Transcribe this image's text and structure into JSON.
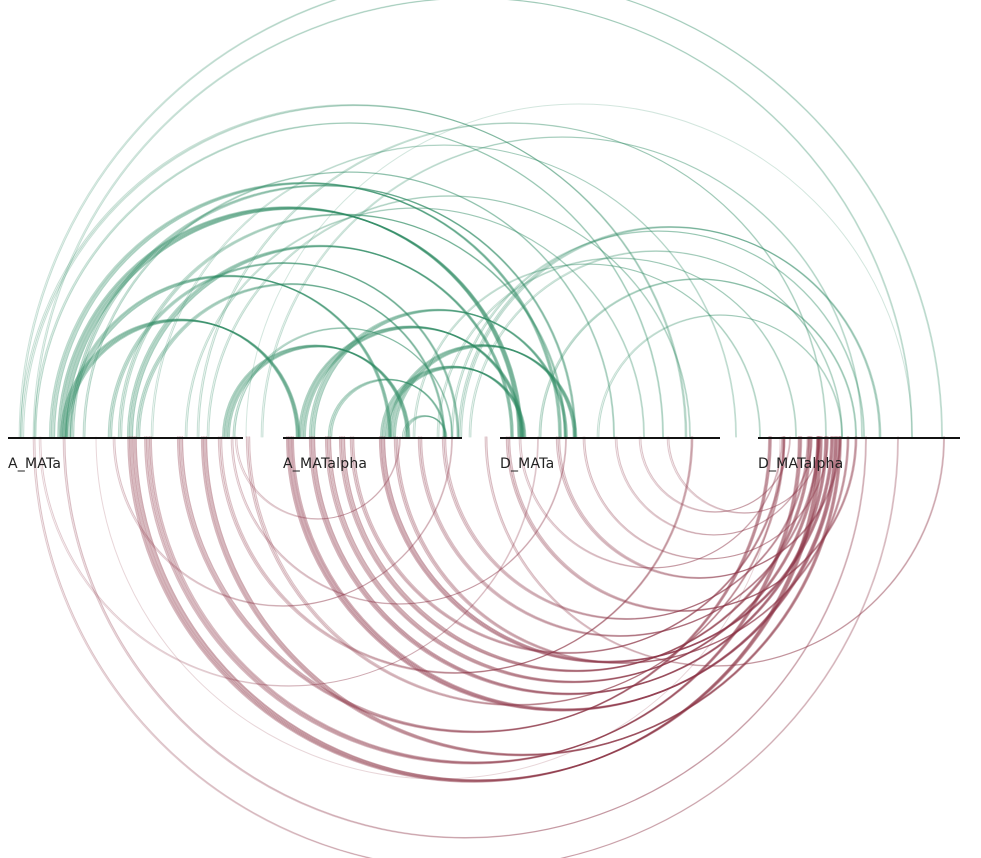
{
  "colors": {
    "upper_arcs": "#2e8b63",
    "lower_arcs": "#8c3446",
    "track": "#111111",
    "label": "#222222",
    "background": "#ffffff"
  },
  "tracks": [
    {
      "id": "A_MATa",
      "label": "A_MATa"
    },
    {
      "id": "A_MATalpha",
      "label": "A_MATalpha"
    },
    {
      "id": "D_MATa",
      "label": "D_MATa"
    },
    {
      "id": "D_MATalpha",
      "label": "D_MATalpha"
    }
  ]
}
